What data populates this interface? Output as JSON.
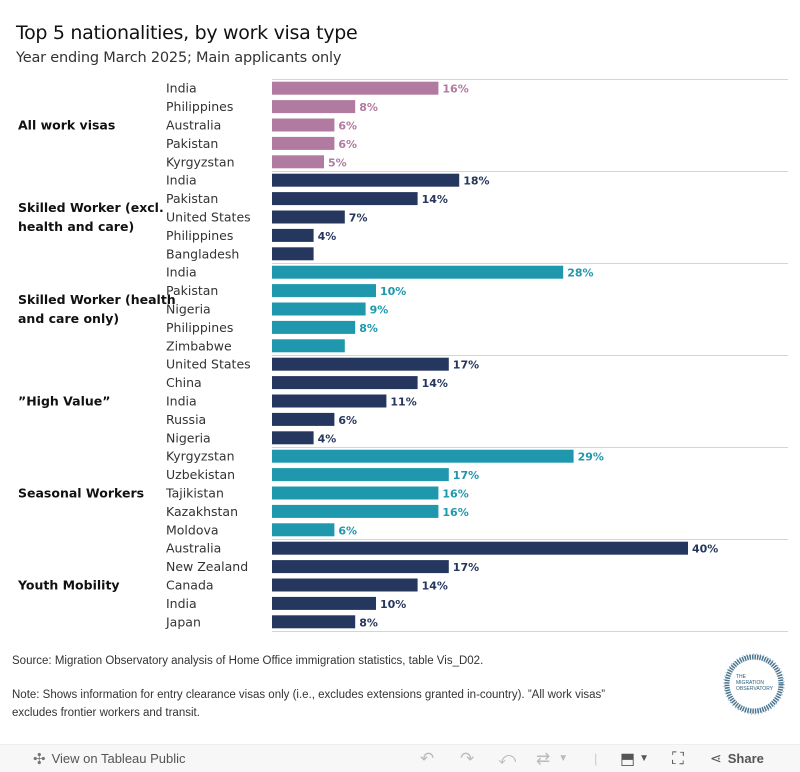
{
  "title": "Top 5 nationalities, by work visa type",
  "subtitle": "Year ending March 2025; Main applicants only",
  "chart_data": {
    "type": "bar",
    "orientation": "horizontal",
    "title": "Top 5 nationalities, by work visa type",
    "subtitle": "Year ending March 2025; Main applicants only",
    "xlabel": "",
    "ylabel": "",
    "unit": "%",
    "xlim": [
      0,
      40
    ],
    "groups": [
      {
        "name": "All work visas",
        "color": "#b07aa1",
        "categories": [
          "India",
          "Philippines",
          "Australia",
          "Pakistan",
          "Kyrgyzstan"
        ],
        "values": [
          16,
          8,
          6,
          6,
          5
        ],
        "labels": [
          "16%",
          "8%",
          "6%",
          "6%",
          "5%"
        ]
      },
      {
        "name": "Skilled Worker (excl. health and care)",
        "color": "#26375f",
        "categories": [
          "India",
          "Pakistan",
          "United States",
          "Philippines",
          "Bangladesh"
        ],
        "values": [
          18,
          14,
          7,
          4,
          4
        ],
        "labels": [
          "18%",
          "14%",
          "7%",
          "4%",
          ""
        ]
      },
      {
        "name": "Skilled Worker (health and care only)",
        "color": "#1f98ad",
        "categories": [
          "India",
          "Pakistan",
          "Nigeria",
          "Philippines",
          "Zimbabwe"
        ],
        "values": [
          28,
          10,
          9,
          8,
          7
        ],
        "labels": [
          "28%",
          "10%",
          "9%",
          "8%",
          ""
        ]
      },
      {
        "name": "”High Value”",
        "color": "#26375f",
        "categories": [
          "United States",
          "China",
          "India",
          "Russia",
          "Nigeria"
        ],
        "values": [
          17,
          14,
          11,
          6,
          4
        ],
        "labels": [
          "17%",
          "14%",
          "11%",
          "6%",
          "4%"
        ]
      },
      {
        "name": "Seasonal Workers",
        "color": "#1f98ad",
        "categories": [
          "Kyrgyzstan",
          "Uzbekistan",
          "Tajikistan",
          "Kazakhstan",
          "Moldova"
        ],
        "values": [
          29,
          17,
          16,
          16,
          6
        ],
        "labels": [
          "29%",
          "17%",
          "16%",
          "16%",
          "6%"
        ]
      },
      {
        "name": "Youth Mobility",
        "color": "#26375f",
        "categories": [
          "Australia",
          "New Zealand",
          "Canada",
          "India",
          "Japan"
        ],
        "values": [
          40,
          17,
          14,
          10,
          8
        ],
        "labels": [
          "40%",
          "17%",
          "14%",
          "10%",
          "8%"
        ]
      }
    ],
    "group_label_lines": {
      "Skilled Worker (excl. health and care)": [
        "Skilled Worker (excl.",
        "health and care)"
      ],
      "Skilled Worker (health and care only)": [
        "Skilled Worker (health",
        "and care only)"
      ]
    },
    "grid": false,
    "legend": "none"
  },
  "footer": {
    "source": "Source: Migration Observatory analysis of Home Office immigration statistics, table Vis_D02.",
    "note_line1": "Note: Shows information for entry clearance visas only (i.e., excludes extensions granted in-country). ”All work visas”",
    "note_line2": "excludes frontier workers and transit.",
    "logo_text": [
      "THE",
      "MIGRATION",
      "OBSERVATORY"
    ]
  },
  "toolbar": {
    "view_label": "View on Tableau Public",
    "share_label": "Share",
    "icons": [
      "tableau-logo-icon",
      "undo-icon",
      "redo-icon",
      "revert-icon",
      "refresh-icon",
      "download-icon",
      "fullscreen-icon",
      "share-icon"
    ]
  }
}
